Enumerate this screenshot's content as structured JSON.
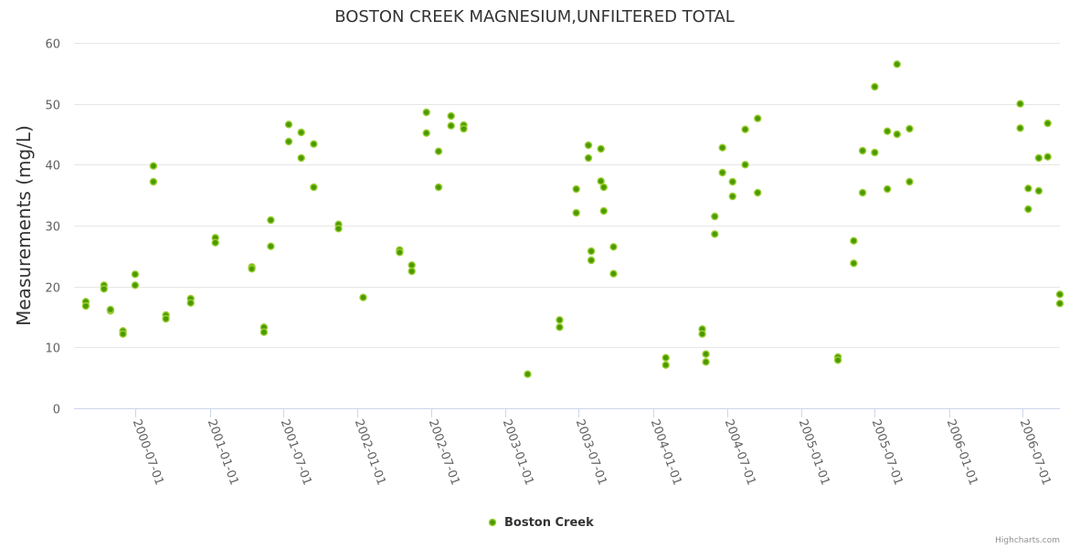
{
  "chart_data": {
    "type": "scatter",
    "title": "BOSTON CREEK MAGNESIUM,UNFILTERED TOTAL",
    "xlabel": "",
    "ylabel": "Measurements (mg/L)",
    "ylim": [
      0,
      60
    ],
    "yticks": [
      "0",
      "10",
      "20",
      "30",
      "40",
      "50",
      "60"
    ],
    "xlim": [
      "2000-02-01",
      "2006-10-01"
    ],
    "xticks": [
      "2000-07-01",
      "2001-01-01",
      "2001-07-01",
      "2002-01-01",
      "2002-07-01",
      "2003-01-01",
      "2003-07-01",
      "2004-01-01",
      "2004-07-01",
      "2005-01-01",
      "2005-07-01",
      "2006-01-01",
      "2006-07-01"
    ],
    "legend": "bottom-center",
    "credits": "Highcharts.com",
    "series": [
      {
        "name": "Boston Creek",
        "color": "#4a9a00",
        "points": [
          [
            "2000-03-01",
            17.5
          ],
          [
            "2000-03-01",
            16.8
          ],
          [
            "2000-04-15",
            20.2
          ],
          [
            "2000-04-15",
            19.6
          ],
          [
            "2000-05-01",
            16.0
          ],
          [
            "2000-05-01",
            16.2
          ],
          [
            "2000-06-01",
            12.7
          ],
          [
            "2000-06-01",
            12.2
          ],
          [
            "2000-07-01",
            22.0
          ],
          [
            "2000-07-01",
            20.2
          ],
          [
            "2000-08-15",
            39.8
          ],
          [
            "2000-08-15",
            37.2
          ],
          [
            "2000-09-15",
            15.3
          ],
          [
            "2000-09-15",
            14.7
          ],
          [
            "2000-11-15",
            18.0
          ],
          [
            "2000-11-15",
            17.3
          ],
          [
            "2001-01-15",
            28.0
          ],
          [
            "2001-01-15",
            27.2
          ],
          [
            "2001-04-15",
            23.2
          ],
          [
            "2001-04-15",
            22.9
          ],
          [
            "2001-05-15",
            13.3
          ],
          [
            "2001-05-15",
            12.5
          ],
          [
            "2001-06-01",
            30.9
          ],
          [
            "2001-06-01",
            26.6
          ],
          [
            "2001-07-15",
            46.6
          ],
          [
            "2001-07-15",
            43.8
          ],
          [
            "2001-08-15",
            45.3
          ],
          [
            "2001-08-15",
            41.1
          ],
          [
            "2001-09-15",
            43.4
          ],
          [
            "2001-09-15",
            36.3
          ],
          [
            "2001-11-15",
            30.2
          ],
          [
            "2001-11-15",
            29.5
          ],
          [
            "2002-01-15",
            18.2
          ],
          [
            "2002-04-15",
            26.0
          ],
          [
            "2002-04-15",
            25.6
          ],
          [
            "2002-05-15",
            23.5
          ],
          [
            "2002-05-15",
            22.5
          ],
          [
            "2002-06-20",
            48.6
          ],
          [
            "2002-06-20",
            45.2
          ],
          [
            "2002-07-20",
            42.2
          ],
          [
            "2002-07-20",
            36.3
          ],
          [
            "2002-08-20",
            48.0
          ],
          [
            "2002-08-20",
            46.4
          ],
          [
            "2002-09-20",
            46.5
          ],
          [
            "2002-09-20",
            45.9
          ],
          [
            "2003-02-25",
            5.6
          ],
          [
            "2003-05-15",
            14.5
          ],
          [
            "2003-05-15",
            13.3
          ],
          [
            "2003-06-25",
            36.0
          ],
          [
            "2003-06-25",
            32.1
          ],
          [
            "2003-07-25",
            43.2
          ],
          [
            "2003-07-25",
            41.1
          ],
          [
            "2003-08-01",
            25.8
          ],
          [
            "2003-08-01",
            24.3
          ],
          [
            "2003-08-25",
            42.6
          ],
          [
            "2003-08-25",
            37.3
          ],
          [
            "2003-09-01",
            36.3
          ],
          [
            "2003-09-01",
            32.4
          ],
          [
            "2003-09-25",
            26.5
          ],
          [
            "2003-09-25",
            22.1
          ],
          [
            "2004-02-01",
            8.3
          ],
          [
            "2004-02-01",
            7.1
          ],
          [
            "2004-05-01",
            13.0
          ],
          [
            "2004-05-01",
            12.2
          ],
          [
            "2004-05-10",
            8.9
          ],
          [
            "2004-05-10",
            7.6
          ],
          [
            "2004-06-01",
            31.5
          ],
          [
            "2004-06-01",
            28.6
          ],
          [
            "2004-06-20",
            42.8
          ],
          [
            "2004-06-20",
            38.7
          ],
          [
            "2004-07-15",
            37.2
          ],
          [
            "2004-07-15",
            34.8
          ],
          [
            "2004-08-15",
            45.8
          ],
          [
            "2004-08-15",
            40.0
          ],
          [
            "2004-09-15",
            47.6
          ],
          [
            "2004-09-15",
            35.4
          ],
          [
            "2005-04-01",
            8.4
          ],
          [
            "2005-04-01",
            7.9
          ],
          [
            "2005-05-10",
            27.5
          ],
          [
            "2005-05-10",
            23.8
          ],
          [
            "2005-06-01",
            42.3
          ],
          [
            "2005-06-01",
            35.4
          ],
          [
            "2005-07-01",
            52.8
          ],
          [
            "2005-07-01",
            42.0
          ],
          [
            "2005-08-01",
            45.5
          ],
          [
            "2005-08-01",
            36.0
          ],
          [
            "2005-08-25",
            56.5
          ],
          [
            "2005-08-25",
            45.0
          ],
          [
            "2005-09-25",
            45.9
          ],
          [
            "2005-09-25",
            37.2
          ],
          [
            "2006-06-25",
            50.0
          ],
          [
            "2006-06-25",
            46.0
          ],
          [
            "2006-07-15",
            36.1
          ],
          [
            "2006-07-15",
            32.7
          ],
          [
            "2006-08-10",
            41.1
          ],
          [
            "2006-08-10",
            35.7
          ],
          [
            "2006-09-01",
            46.8
          ],
          [
            "2006-09-01",
            41.3
          ],
          [
            "2006-10-01",
            18.7
          ],
          [
            "2006-10-01",
            17.2
          ]
        ]
      }
    ]
  }
}
